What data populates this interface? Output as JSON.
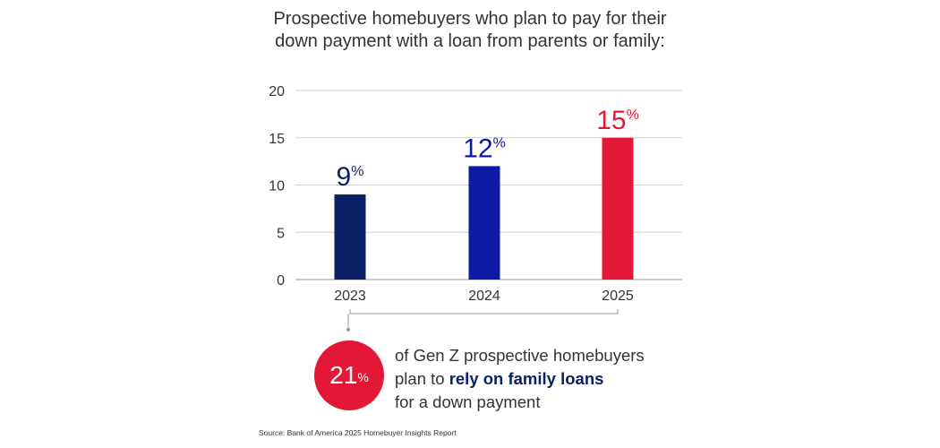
{
  "title": {
    "line1": "Prospective homebuyers who plan to pay for their",
    "line2": "down payment with a loan from parents or family:"
  },
  "chart_data": {
    "type": "bar",
    "categories": [
      "2023",
      "2024",
      "2025"
    ],
    "values": [
      9,
      12,
      15
    ],
    "value_labels": [
      "9",
      "12",
      "15"
    ],
    "value_suffix": "%",
    "bar_colors": [
      "#0b1f66",
      "#0d1aa6",
      "#e31837"
    ],
    "ylim": [
      0,
      20
    ],
    "yticks": [
      0,
      5,
      10,
      15,
      20
    ],
    "grid": true,
    "xlabel": "",
    "ylabel": ""
  },
  "callout": {
    "value": "21",
    "suffix": "%",
    "text_line1": "of Gen Z prospective homebuyers",
    "text_line2_prefix": "plan to ",
    "text_line2_emphasis": "rely on family loans",
    "text_line3": "for a down payment",
    "circle_color": "#e31837"
  },
  "source": "Source: Bank of America 2025 Homebuyer Insights Report"
}
